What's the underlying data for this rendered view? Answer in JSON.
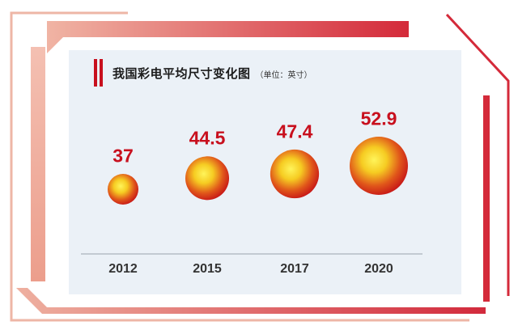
{
  "title": "我国彩电平均尺寸变化图",
  "subtitle": "（单位：英寸）",
  "colors": {
    "accent": "#c8101e",
    "panel": "#ebf1f7",
    "frame_light": "#eea898",
    "frame_dark": "#d42a3a"
  },
  "chart_data": {
    "type": "scatter",
    "title": "我国彩电平均尺寸变化图",
    "unit": "（单位：英寸）",
    "categories": [
      "2012",
      "2015",
      "2017",
      "2020"
    ],
    "values": [
      37,
      44.5,
      47.4,
      52.9
    ],
    "value_labels": [
      "37",
      "44.5",
      "47.4",
      "52.9"
    ],
    "encoding": "bubble size proportional to value",
    "grid": false,
    "legend": "none"
  }
}
